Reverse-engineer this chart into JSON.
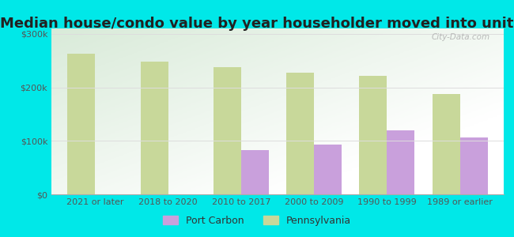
{
  "title": "Median house/condo value by year householder moved into unit",
  "categories": [
    "2021 or later",
    "2018 to 2020",
    "2010 to 2017",
    "2000 to 2009",
    "1990 to 1999",
    "1989 or earlier"
  ],
  "port_carbon_values": [
    null,
    null,
    82000,
    93000,
    120000,
    107000
  ],
  "pennsylvania_values": [
    263000,
    248000,
    238000,
    228000,
    222000,
    188000
  ],
  "port_carbon_color": "#c9a0dc",
  "pennsylvania_color": "#c8d89a",
  "bar_width": 0.38,
  "ylim": [
    0,
    310000
  ],
  "yticks": [
    0,
    100000,
    200000,
    300000
  ],
  "ytick_labels": [
    "$0",
    "$100k",
    "$200k",
    "$300k"
  ],
  "outer_bg": "#00e8e8",
  "title_fontsize": 13,
  "title_color": "#222222",
  "legend_labels": [
    "Port Carbon",
    "Pennsylvania"
  ],
  "watermark": "City-Data.com",
  "tick_color": "#555555",
  "tick_fontsize": 8,
  "grid_color": "#dddddd"
}
